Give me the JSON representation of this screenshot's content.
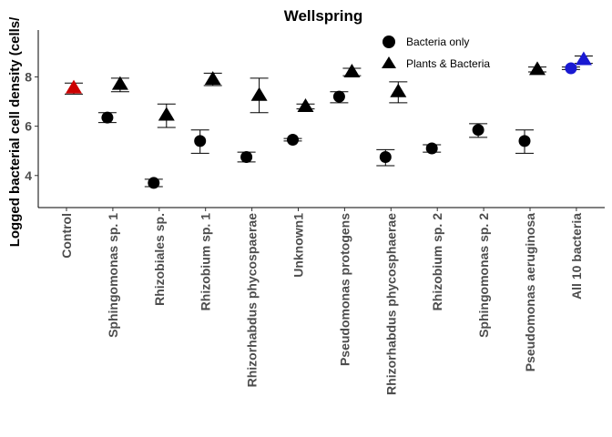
{
  "chart_data": {
    "type": "scatter",
    "title": "Wellspring",
    "xlabel": "",
    "ylabel": "Logged bacterial cell density (cells/",
    "categories": [
      "Control",
      "Sphingomonas sp. 1",
      "Rhizobiales sp.",
      "Rhizobium sp. 1",
      "Rhizorhabdus phycospaerae",
      "Unknown1",
      "Pseudomonas protogens",
      "Rhizorhabdus phycosphaerae",
      "Rhizobium sp. 2",
      "Sphingomonas sp. 2",
      "Pseudomonas aeruginosa",
      "All 10 bacteria"
    ],
    "yticks": [
      "4",
      "6",
      "8"
    ],
    "ylim": [
      2.7,
      9.9
    ],
    "grid": false,
    "legend": {
      "position": "top-right",
      "entries": [
        {
          "label": "Bacteria only",
          "shape": "circle"
        },
        {
          "label": "Plants & Bacteria",
          "shape": "triangle"
        }
      ]
    },
    "series": [
      {
        "name": "Bacteria only",
        "shape": "circle",
        "points": [
          {
            "category": "Sphingomonas sp. 1",
            "y": 6.35,
            "ymin": 6.15,
            "ymax": 6.55
          },
          {
            "category": "Rhizobiales sp.",
            "y": 3.7,
            "ymin": 3.55,
            "ymax": 3.85
          },
          {
            "category": "Rhizobium sp. 1",
            "y": 5.4,
            "ymin": 4.9,
            "ymax": 5.85
          },
          {
            "category": "Rhizorhabdus phycospaerae",
            "y": 4.75,
            "ymin": 4.55,
            "ymax": 4.95
          },
          {
            "category": "Unknown1",
            "y": 5.45,
            "ymin": 5.4,
            "ymax": 5.5
          },
          {
            "category": "Pseudomonas protogens",
            "y": 7.2,
            "ymin": 6.95,
            "ymax": 7.4
          },
          {
            "category": "Rhizorhabdus phycosphaerae",
            "y": 4.75,
            "ymin": 4.4,
            "ymax": 5.05
          },
          {
            "category": "Rhizobium sp. 2",
            "y": 5.1,
            "ymin": 4.95,
            "ymax": 5.25
          },
          {
            "category": "Sphingomonas sp. 2",
            "y": 5.85,
            "ymin": 5.55,
            "ymax": 6.1
          },
          {
            "category": "Pseudomonas aeruginosa",
            "y": 5.4,
            "ymin": 4.9,
            "ymax": 5.85
          },
          {
            "category": "All 10 bacteria",
            "y": 8.35,
            "ymin": 8.3,
            "ymax": 8.4,
            "color": "#1919d2"
          }
        ]
      },
      {
        "name": "Plants & Bacteria",
        "shape": "triangle",
        "points": [
          {
            "category": "Control",
            "y": 7.55,
            "ymin": 7.3,
            "ymax": 7.75,
            "color": "#cc0000"
          },
          {
            "category": "Sphingomonas sp. 1",
            "y": 7.7,
            "ymin": 7.4,
            "ymax": 7.95
          },
          {
            "category": "Rhizobiales sp.",
            "y": 6.45,
            "ymin": 5.95,
            "ymax": 6.9
          },
          {
            "category": "Rhizobium sp. 1",
            "y": 7.9,
            "ymin": 7.65,
            "ymax": 8.15
          },
          {
            "category": "Rhizorhabdus phycospaerae",
            "y": 7.25,
            "ymin": 6.55,
            "ymax": 7.95
          },
          {
            "category": "Unknown1",
            "y": 6.8,
            "ymin": 6.7,
            "ymax": 6.9
          },
          {
            "category": "Pseudomonas protogens",
            "y": 8.2,
            "ymin": 8.05,
            "ymax": 8.35
          },
          {
            "category": "Rhizorhabdus phycosphaerae",
            "y": 7.4,
            "ymin": 6.95,
            "ymax": 7.8
          },
          {
            "category": "Pseudomonas aeruginosa",
            "y": 8.3,
            "ymin": 8.2,
            "ymax": 8.4
          },
          {
            "category": "All 10 bacteria",
            "y": 8.7,
            "ymin": 8.55,
            "ymax": 8.85,
            "color": "#1919d2"
          }
        ]
      }
    ]
  }
}
